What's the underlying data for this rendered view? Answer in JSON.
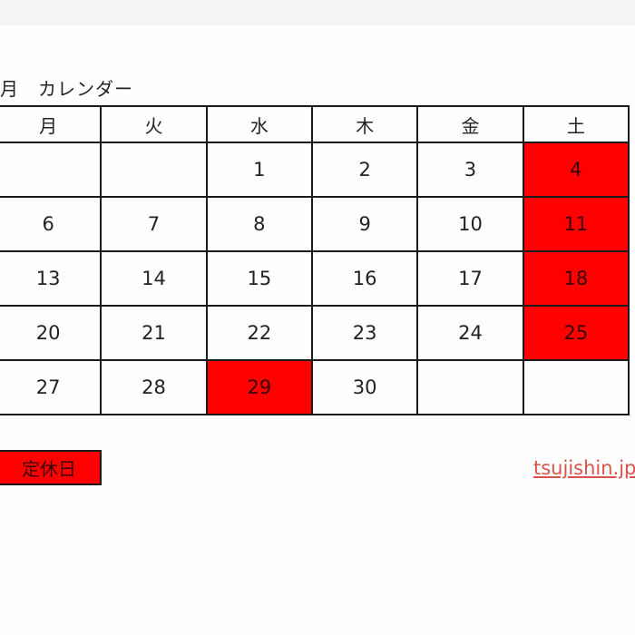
{
  "title": "月　カレンダー",
  "weekdays": [
    "月",
    "火",
    "水",
    "木",
    "金",
    "土"
  ],
  "weeks": [
    [
      "",
      "",
      "1",
      "2",
      "3",
      "4"
    ],
    [
      "6",
      "7",
      "8",
      "9",
      "10",
      "11"
    ],
    [
      "13",
      "14",
      "15",
      "16",
      "17",
      "18"
    ],
    [
      "20",
      "21",
      "22",
      "23",
      "24",
      "25"
    ],
    [
      "27",
      "28",
      "29",
      "30",
      "",
      ""
    ]
  ],
  "holidays": [
    "4",
    "11",
    "18",
    "25",
    "29"
  ],
  "legend": {
    "label": "定休日",
    "color": "#fe0000"
  },
  "site_link": "tsujishin.jp"
}
